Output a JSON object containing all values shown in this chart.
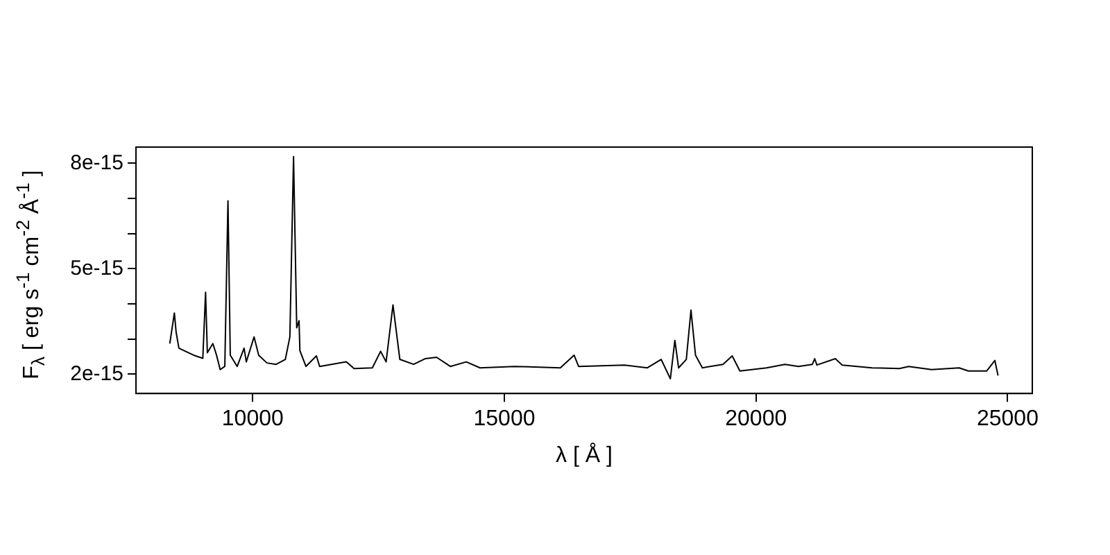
{
  "chart_data": {
    "type": "line",
    "xlabel": "λ [ Å ]",
    "ylabel": "F$_{λ}$ [ erg s$^{-1}$ cm$^{-2}$ Å$^{-1}$ ]",
    "xlim": [
      7680,
      25490
    ],
    "xticks": [
      10000,
      15000,
      20000,
      25000
    ],
    "ylim": [
      1.45e-15,
      8.46e-15
    ],
    "yticks": [
      {
        "value": 2e-15,
        "label": "2e-15"
      },
      {
        "value": 3e-15,
        "label": null
      },
      {
        "value": 4e-15,
        "label": null
      },
      {
        "value": 5e-15,
        "label": "5e-15"
      },
      {
        "value": 6e-15,
        "label": null
      },
      {
        "value": 7e-15,
        "label": null
      },
      {
        "value": 8e-15,
        "label": "8e-15"
      }
    ],
    "grid": false,
    "legend": false,
    "marker": "none",
    "line_style": "solid",
    "series": [
      {
        "color": "#000000",
        "x": [
          8352,
          8443,
          8478,
          8533,
          8825,
          9008,
          9063,
          9098,
          9208,
          9281,
          9353,
          9445,
          9508,
          9554,
          9691,
          9828,
          9872,
          10027,
          10118,
          10281,
          10464,
          10648,
          10738,
          10811,
          10874,
          10920,
          10937,
          11057,
          11265,
          11330,
          11858,
          12013,
          12377,
          12541,
          12650,
          12787,
          12923,
          13197,
          13424,
          13653,
          13926,
          14243,
          14516,
          15200,
          16112,
          16385,
          16475,
          17385,
          17842,
          18115,
          18298,
          18388,
          18462,
          18615,
          18708,
          18798,
          18934,
          19344,
          19527,
          19680,
          20210,
          20574,
          20847,
          21120,
          21166,
          21210,
          21576,
          21713,
          22304,
          22850,
          23033,
          23489,
          24036,
          24218,
          24582,
          24746,
          24809
        ],
        "values": [
          2.87e-15,
          3.74e-15,
          3.19e-15,
          2.74e-15,
          2.54e-15,
          2.45e-15,
          4.33e-15,
          2.61e-15,
          2.87e-15,
          2.54e-15,
          2.13e-15,
          2.22e-15,
          6.93e-15,
          2.54e-15,
          2.22e-15,
          2.74e-15,
          2.35e-15,
          3.06e-15,
          2.54e-15,
          2.32e-15,
          2.28e-15,
          2.42e-15,
          3.06e-15,
          8.19e-15,
          3.32e-15,
          3.52e-15,
          2.67e-15,
          2.22e-15,
          2.52e-15,
          2.22e-15,
          2.35e-15,
          2.16e-15,
          2.18e-15,
          2.65e-15,
          2.35e-15,
          3.97e-15,
          2.42e-15,
          2.28e-15,
          2.44e-15,
          2.48e-15,
          2.22e-15,
          2.35e-15,
          2.18e-15,
          2.22e-15,
          2.18e-15,
          2.54e-15,
          2.22e-15,
          2.26e-15,
          2.18e-15,
          2.42e-15,
          1.87e-15,
          2.96e-15,
          2.18e-15,
          2.42e-15,
          3.82e-15,
          2.54e-15,
          2.18e-15,
          2.28e-15,
          2.52e-15,
          2.09e-15,
          2.18e-15,
          2.28e-15,
          2.22e-15,
          2.28e-15,
          2.44e-15,
          2.26e-15,
          2.44e-15,
          2.26e-15,
          2.18e-15,
          2.16e-15,
          2.22e-15,
          2.13e-15,
          2.18e-15,
          2.09e-15,
          2.09e-15,
          2.39e-15,
          1.96e-15
        ]
      }
    ]
  }
}
